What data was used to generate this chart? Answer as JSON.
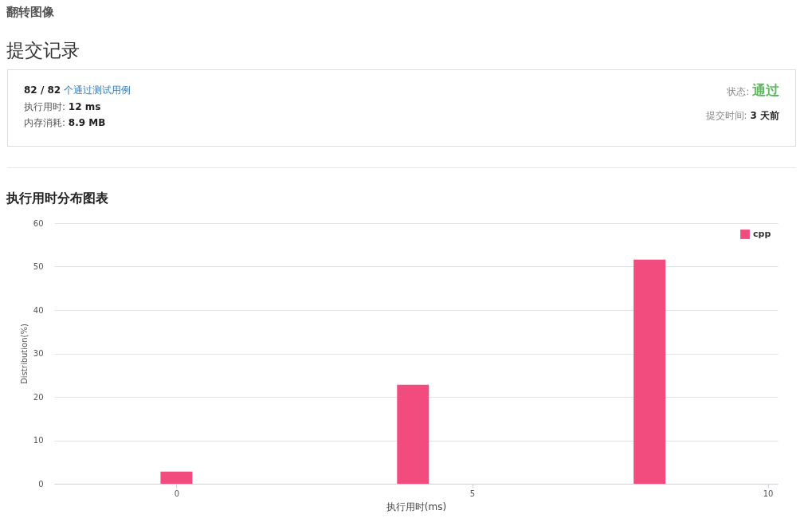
{
  "chart_data": [
    {
      "type": "other",
      "title": "翻转图像",
      "subtitle": "提交记录",
      "annotations": [
        "82 / 82",
        "个通过测试用例",
        "执行用时:",
        "12 ms",
        "内存消耗:",
        "8.9 MB",
        "状态:",
        "通过",
        "提交时间:",
        "3 天前"
      ]
    },
    {
      "type": "bar",
      "title": "执行用时分布图表",
      "xlabel": "执行用时(ms)",
      "ylabel": "Distribution(%)",
      "x": [
        0,
        4,
        8
      ],
      "series": [
        {
          "name": "cpp",
          "color": "#f24c7e",
          "values": [
            2.8,
            22.8,
            51.6
          ]
        }
      ],
      "xlim": [
        -2,
        10.1
      ],
      "xticks": [
        0,
        5,
        10
      ],
      "ylim": [
        0,
        60
      ],
      "yticks": [
        0,
        10,
        20,
        30,
        40,
        50,
        60
      ],
      "grid": "y",
      "legend": "top right"
    }
  ]
}
